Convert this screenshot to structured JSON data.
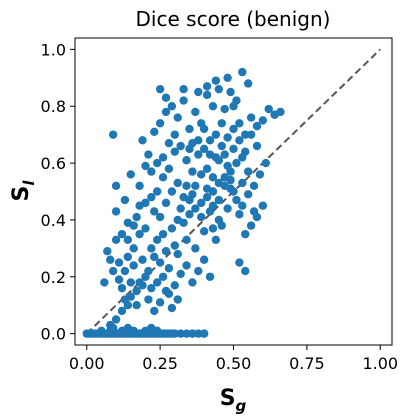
{
  "chart_data": {
    "type": "scatter",
    "title": "Dice score (benign)",
    "xlabel": {
      "main": "S",
      "sub": "g"
    },
    "ylabel": {
      "main": "S",
      "sub": "l"
    },
    "xlim": [
      -0.04,
      1.04
    ],
    "ylim": [
      -0.04,
      1.04
    ],
    "xticks": [
      "0.00",
      "0.25",
      "0.50",
      "0.75",
      "1.00"
    ],
    "xtick_values": [
      0,
      0.25,
      0.5,
      0.75,
      1.0
    ],
    "yticks": [
      "0.0",
      "0.2",
      "0.4",
      "0.6",
      "0.8",
      "1.0"
    ],
    "ytick_values": [
      0,
      0.2,
      0.4,
      0.6,
      0.8,
      1.0
    ],
    "grid": false,
    "point_color": "#1f77b4",
    "reference_line": {
      "from": [
        0,
        0
      ],
      "to": [
        1,
        1
      ],
      "style": "dashed",
      "color": "#555555"
    },
    "points": [
      [
        0.0,
        0.0
      ],
      [
        0.01,
        0.0
      ],
      [
        0.02,
        0.0
      ],
      [
        0.03,
        0.0
      ],
      [
        0.04,
        0.0
      ],
      [
        0.05,
        0.0
      ],
      [
        0.06,
        0.0
      ],
      [
        0.07,
        0.0
      ],
      [
        0.08,
        0.0
      ],
      [
        0.09,
        0.0
      ],
      [
        0.1,
        0.0
      ],
      [
        0.11,
        0.0
      ],
      [
        0.12,
        0.0
      ],
      [
        0.13,
        0.0
      ],
      [
        0.14,
        0.0
      ],
      [
        0.15,
        0.0
      ],
      [
        0.16,
        0.0
      ],
      [
        0.17,
        0.0
      ],
      [
        0.18,
        0.0
      ],
      [
        0.19,
        0.0
      ],
      [
        0.2,
        0.0
      ],
      [
        0.21,
        0.0
      ],
      [
        0.22,
        0.0
      ],
      [
        0.23,
        0.0
      ],
      [
        0.24,
        0.0
      ],
      [
        0.25,
        0.0
      ],
      [
        0.26,
        0.0
      ],
      [
        0.27,
        0.0
      ],
      [
        0.28,
        0.0
      ],
      [
        0.29,
        0.0
      ],
      [
        0.3,
        0.0
      ],
      [
        0.32,
        0.0
      ],
      [
        0.34,
        0.0
      ],
      [
        0.36,
        0.0
      ],
      [
        0.38,
        0.0
      ],
      [
        0.4,
        0.0
      ],
      [
        0.08,
        0.01
      ],
      [
        0.12,
        0.01
      ],
      [
        0.16,
        0.01
      ],
      [
        0.2,
        0.01
      ],
      [
        0.24,
        0.01
      ],
      [
        0.09,
        0.02
      ],
      [
        0.14,
        0.02
      ],
      [
        0.22,
        0.02
      ],
      [
        0.05,
        0.01
      ],
      [
        0.08,
        0.03
      ],
      [
        0.1,
        0.05
      ],
      [
        0.12,
        0.08
      ],
      [
        0.14,
        0.1
      ],
      [
        0.15,
        0.13
      ],
      [
        0.17,
        0.15
      ],
      [
        0.18,
        0.18
      ],
      [
        0.2,
        0.2
      ],
      [
        0.11,
        0.19
      ],
      [
        0.13,
        0.22
      ],
      [
        0.16,
        0.24
      ],
      [
        0.19,
        0.26
      ],
      [
        0.21,
        0.22
      ],
      [
        0.23,
        0.27
      ],
      [
        0.25,
        0.25
      ],
      [
        0.27,
        0.29
      ],
      [
        0.28,
        0.23
      ],
      [
        0.3,
        0.31
      ],
      [
        0.22,
        0.3
      ],
      [
        0.24,
        0.33
      ],
      [
        0.26,
        0.35
      ],
      [
        0.29,
        0.37
      ],
      [
        0.31,
        0.4
      ],
      [
        0.33,
        0.39
      ],
      [
        0.35,
        0.42
      ],
      [
        0.37,
        0.44
      ],
      [
        0.39,
        0.46
      ],
      [
        0.41,
        0.48
      ],
      [
        0.43,
        0.5
      ],
      [
        0.45,
        0.53
      ],
      [
        0.47,
        0.55
      ],
      [
        0.49,
        0.57
      ],
      [
        0.51,
        0.6
      ],
      [
        0.53,
        0.62
      ],
      [
        0.09,
        0.22
      ],
      [
        0.07,
        0.29
      ],
      [
        0.1,
        0.33
      ],
      [
        0.12,
        0.35
      ],
      [
        0.08,
        0.26
      ],
      [
        0.06,
        0.18
      ],
      [
        0.1,
        0.43
      ],
      [
        0.14,
        0.39
      ],
      [
        0.17,
        0.41
      ],
      [
        0.2,
        0.37
      ],
      [
        0.23,
        0.43
      ],
      [
        0.25,
        0.41
      ],
      [
        0.27,
        0.46
      ],
      [
        0.29,
        0.5
      ],
      [
        0.31,
        0.53
      ],
      [
        0.33,
        0.48
      ],
      [
        0.35,
        0.47
      ],
      [
        0.37,
        0.52
      ],
      [
        0.39,
        0.56
      ],
      [
        0.41,
        0.58
      ],
      [
        0.43,
        0.55
      ],
      [
        0.45,
        0.61
      ],
      [
        0.47,
        0.63
      ],
      [
        0.49,
        0.51
      ],
      [
        0.51,
        0.47
      ],
      [
        0.53,
        0.45
      ],
      [
        0.55,
        0.49
      ],
      [
        0.57,
        0.52
      ],
      [
        0.59,
        0.56
      ],
      [
        0.52,
        0.42
      ],
      [
        0.54,
        0.35
      ],
      [
        0.43,
        0.37
      ],
      [
        0.45,
        0.4
      ],
      [
        0.48,
        0.44
      ],
      [
        0.5,
        0.5
      ],
      [
        0.53,
        0.53
      ],
      [
        0.55,
        0.57
      ],
      [
        0.57,
        0.43
      ],
      [
        0.1,
        0.52
      ],
      [
        0.13,
        0.47
      ],
      [
        0.15,
        0.56
      ],
      [
        0.18,
        0.52
      ],
      [
        0.2,
        0.59
      ],
      [
        0.22,
        0.57
      ],
      [
        0.24,
        0.6
      ],
      [
        0.26,
        0.62
      ],
      [
        0.28,
        0.58
      ],
      [
        0.3,
        0.64
      ],
      [
        0.32,
        0.66
      ],
      [
        0.34,
        0.61
      ],
      [
        0.36,
        0.67
      ],
      [
        0.38,
        0.63
      ],
      [
        0.4,
        0.65
      ],
      [
        0.42,
        0.68
      ],
      [
        0.44,
        0.7
      ],
      [
        0.46,
        0.66
      ],
      [
        0.48,
        0.69
      ],
      [
        0.5,
        0.72
      ],
      [
        0.52,
        0.74
      ],
      [
        0.54,
        0.7
      ],
      [
        0.56,
        0.76
      ],
      [
        0.58,
        0.73
      ],
      [
        0.6,
        0.75
      ],
      [
        0.62,
        0.79
      ],
      [
        0.64,
        0.77
      ],
      [
        0.66,
        0.78
      ],
      [
        0.09,
        0.7
      ],
      [
        0.19,
        0.68
      ],
      [
        0.21,
        0.63
      ],
      [
        0.23,
        0.71
      ],
      [
        0.25,
        0.74
      ],
      [
        0.27,
        0.78
      ],
      [
        0.29,
        0.8
      ],
      [
        0.31,
        0.76
      ],
      [
        0.33,
        0.82
      ],
      [
        0.35,
        0.72
      ],
      [
        0.37,
        0.78
      ],
      [
        0.39,
        0.74
      ],
      [
        0.41,
        0.84
      ],
      [
        0.43,
        0.8
      ],
      [
        0.45,
        0.86
      ],
      [
        0.47,
        0.79
      ],
      [
        0.49,
        0.85
      ],
      [
        0.51,
        0.82
      ],
      [
        0.53,
        0.92
      ],
      [
        0.55,
        0.88
      ],
      [
        0.41,
        0.87
      ],
      [
        0.33,
        0.86
      ],
      [
        0.25,
        0.86
      ],
      [
        0.27,
        0.83
      ],
      [
        0.38,
        0.85
      ],
      [
        0.44,
        0.89
      ],
      [
        0.48,
        0.9
      ],
      [
        0.5,
        0.8
      ],
      [
        0.22,
        0.16
      ],
      [
        0.24,
        0.18
      ],
      [
        0.26,
        0.2
      ],
      [
        0.28,
        0.14
      ],
      [
        0.3,
        0.17
      ],
      [
        0.32,
        0.21
      ],
      [
        0.34,
        0.24
      ],
      [
        0.36,
        0.18
      ],
      [
        0.38,
        0.22
      ],
      [
        0.4,
        0.26
      ],
      [
        0.42,
        0.2
      ],
      [
        0.13,
        0.12
      ],
      [
        0.15,
        0.18
      ],
      [
        0.17,
        0.1
      ],
      [
        0.19,
        0.17
      ],
      [
        0.21,
        0.12
      ],
      [
        0.23,
        0.08
      ],
      [
        0.25,
        0.11
      ],
      [
        0.27,
        0.15
      ],
      [
        0.29,
        0.09
      ],
      [
        0.31,
        0.12
      ],
      [
        0.52,
        0.25
      ],
      [
        0.54,
        0.22
      ],
      [
        0.56,
        0.38
      ],
      [
        0.58,
        0.41
      ],
      [
        0.6,
        0.45
      ],
      [
        0.18,
        0.45
      ],
      [
        0.16,
        0.3
      ],
      [
        0.14,
        0.27
      ],
      [
        0.12,
        0.16
      ],
      [
        0.11,
        0.25
      ],
      [
        0.31,
        0.28
      ],
      [
        0.34,
        0.33
      ],
      [
        0.37,
        0.3
      ],
      [
        0.4,
        0.36
      ],
      [
        0.42,
        0.43
      ],
      [
        0.44,
        0.33
      ],
      [
        0.46,
        0.38
      ],
      [
        0.48,
        0.59
      ],
      [
        0.5,
        0.65
      ],
      [
        0.52,
        0.68
      ],
      [
        0.54,
        0.64
      ],
      [
        0.56,
        0.7
      ],
      [
        0.58,
        0.66
      ],
      [
        0.61,
        0.6
      ],
      [
        0.36,
        0.57
      ],
      [
        0.38,
        0.68
      ],
      [
        0.4,
        0.72
      ],
      [
        0.42,
        0.63
      ],
      [
        0.44,
        0.62
      ],
      [
        0.46,
        0.74
      ],
      [
        0.35,
        0.65
      ],
      [
        0.3,
        0.7
      ],
      [
        0.28,
        0.67
      ],
      [
        0.26,
        0.55
      ],
      [
        0.24,
        0.5
      ],
      [
        0.22,
        0.48
      ],
      [
        0.2,
        0.46
      ],
      [
        0.18,
        0.35
      ],
      [
        0.16,
        0.38
      ],
      [
        0.14,
        0.33
      ],
      [
        0.32,
        0.44
      ],
      [
        0.34,
        0.52
      ],
      [
        0.36,
        0.49
      ],
      [
        0.39,
        0.41
      ],
      [
        0.41,
        0.51
      ],
      [
        0.43,
        0.45
      ],
      [
        0.45,
        0.47
      ],
      [
        0.47,
        0.52
      ],
      [
        0.49,
        0.54
      ]
    ]
  }
}
